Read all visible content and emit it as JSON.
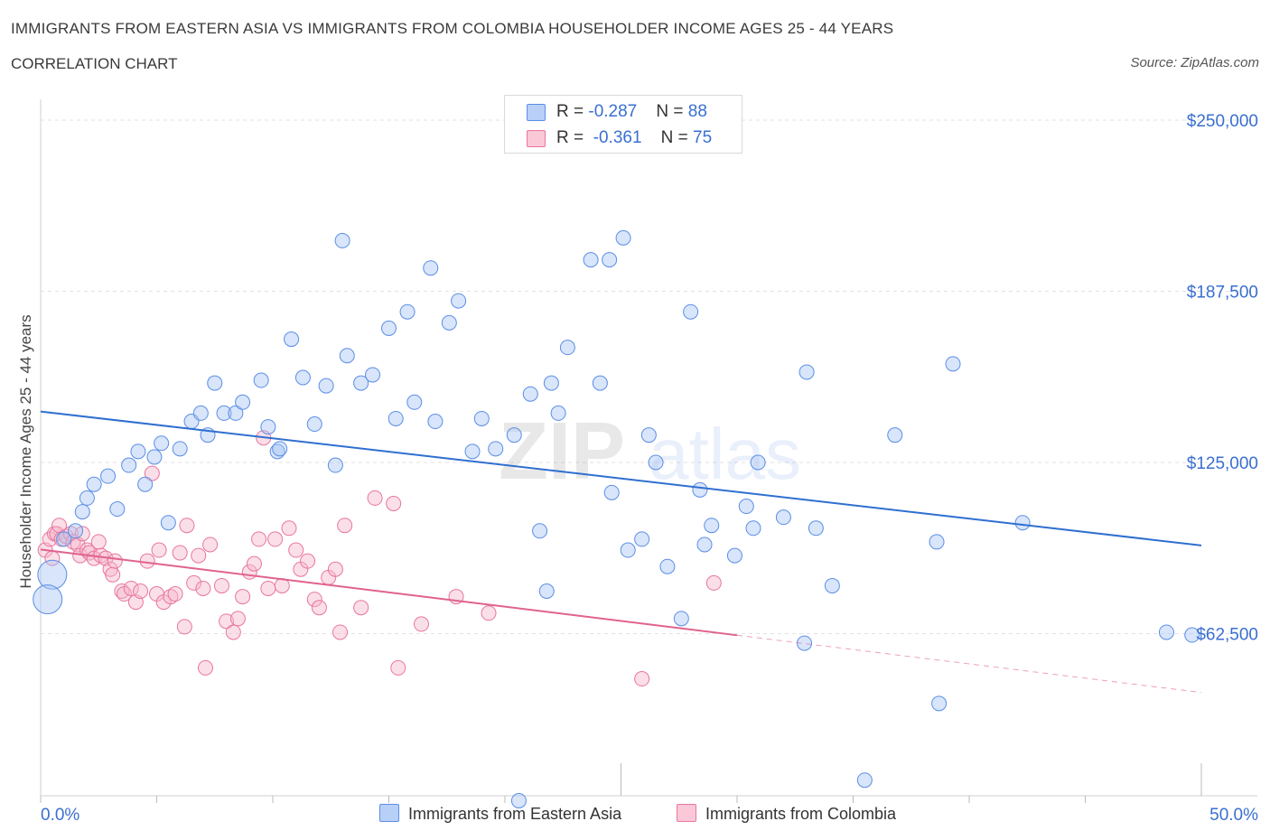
{
  "header": {
    "title": "IMMIGRANTS FROM EASTERN ASIA VS IMMIGRANTS FROM COLOMBIA HOUSEHOLDER INCOME AGES 25 - 44 YEARS",
    "subtitle": "CORRELATION CHART",
    "source": "Source: ZipAtlas.com"
  },
  "legend": {
    "rows": [
      {
        "r_label": "R = ",
        "r_value": "-0.287",
        "n_label": "N = ",
        "n_value": "88"
      },
      {
        "r_label": "R = ",
        "r_value": "-0.361",
        "n_label": "N = ",
        "n_value": "75"
      }
    ]
  },
  "watermark": {
    "zip": "ZIP",
    "atlas": "atlas"
  },
  "chart_data": {
    "type": "scatter",
    "title": "IMMIGRANTS FROM EASTERN ASIA VS IMMIGRANTS FROM COLOMBIA HOUSEHOLDER INCOME AGES 25 - 44 YEARS",
    "subtitle": "CORRELATION CHART",
    "xlabel": "",
    "ylabel": "Householder Income Ages 25 - 44 years",
    "xlim": [
      0,
      50
    ],
    "ylim": [
      0,
      250000
    ],
    "x_tick_labels": {
      "left": "0.0%",
      "right": "50.0%"
    },
    "y_ticks": [
      {
        "value": 250000,
        "label": "$250,000"
      },
      {
        "value": 187500,
        "label": "$187,500"
      },
      {
        "value": 125000,
        "label": "$125,000"
      },
      {
        "value": 62500,
        "label": "$62,500"
      }
    ],
    "colors": {
      "blue": "#5b8ee6",
      "blue_fill": "#a9c5f3",
      "pink": "#e8769e",
      "pink_fill": "#f6b9cd",
      "blue_line": "#2f6fd0",
      "pink_line": "#e0628f",
      "grid": "#e2e2e2",
      "tick_label": "#3a6fd0"
    },
    "series": [
      {
        "name": "Immigrants from Eastern Asia",
        "color": "#5b8ee6",
        "R": -0.287,
        "N": 88,
        "trend": {
          "x0": 0,
          "y0": 143600,
          "x1": 50,
          "y1": 94700
        },
        "points": [
          [
            0.5,
            84000
          ],
          [
            0.3,
            75000
          ],
          [
            1.0,
            97000
          ],
          [
            1.5,
            100000
          ],
          [
            1.8,
            107000
          ],
          [
            2.0,
            112000
          ],
          [
            2.3,
            117000
          ],
          [
            2.9,
            120000
          ],
          [
            3.3,
            108000
          ],
          [
            3.8,
            124000
          ],
          [
            4.2,
            129000
          ],
          [
            4.5,
            117000
          ],
          [
            4.9,
            127000
          ],
          [
            5.2,
            132000
          ],
          [
            5.5,
            103000
          ],
          [
            6.0,
            130000
          ],
          [
            6.5,
            140000
          ],
          [
            6.9,
            143000
          ],
          [
            7.2,
            135000
          ],
          [
            7.5,
            154000
          ],
          [
            7.9,
            143000
          ],
          [
            8.4,
            143000
          ],
          [
            8.7,
            147000
          ],
          [
            9.5,
            155000
          ],
          [
            9.8,
            138000
          ],
          [
            10.2,
            129000
          ],
          [
            10.3,
            130000
          ],
          [
            10.8,
            170000
          ],
          [
            11.3,
            156000
          ],
          [
            11.8,
            139000
          ],
          [
            12.3,
            153000
          ],
          [
            12.7,
            124000
          ],
          [
            13.2,
            164000
          ],
          [
            13.8,
            154000
          ],
          [
            13.0,
            206000
          ],
          [
            14.3,
            157000
          ],
          [
            15.0,
            174000
          ],
          [
            15.3,
            141000
          ],
          [
            15.8,
            180000
          ],
          [
            16.1,
            147000
          ],
          [
            16.8,
            196000
          ],
          [
            17.0,
            140000
          ],
          [
            17.6,
            176000
          ],
          [
            18.0,
            184000
          ],
          [
            18.6,
            129000
          ],
          [
            19.0,
            141000
          ],
          [
            19.6,
            130000
          ],
          [
            20.4,
            135000
          ],
          [
            20.6,
            1500
          ],
          [
            21.1,
            150000
          ],
          [
            21.5,
            100000
          ],
          [
            21.8,
            78000
          ],
          [
            22.0,
            154000
          ],
          [
            22.3,
            143000
          ],
          [
            22.7,
            167000
          ],
          [
            23.7,
            199000
          ],
          [
            24.1,
            154000
          ],
          [
            24.5,
            199000
          ],
          [
            24.6,
            114000
          ],
          [
            25.1,
            207000
          ],
          [
            25.3,
            93000
          ],
          [
            25.9,
            97000
          ],
          [
            26.2,
            135000
          ],
          [
            26.5,
            125000
          ],
          [
            27.0,
            87000
          ],
          [
            27.6,
            68000
          ],
          [
            28.0,
            180000
          ],
          [
            28.4,
            115000
          ],
          [
            28.6,
            95000
          ],
          [
            28.9,
            102000
          ],
          [
            29.9,
            91000
          ],
          [
            30.4,
            109000
          ],
          [
            30.7,
            101000
          ],
          [
            30.9,
            125000
          ],
          [
            32.0,
            105000
          ],
          [
            32.9,
            59000
          ],
          [
            33.0,
            158000
          ],
          [
            33.4,
            101000
          ],
          [
            34.1,
            80000
          ],
          [
            35.5,
            9000
          ],
          [
            36.8,
            135000
          ],
          [
            38.6,
            96000
          ],
          [
            38.7,
            37000
          ],
          [
            39.3,
            161000
          ],
          [
            42.3,
            103000
          ],
          [
            48.5,
            63000
          ],
          [
            49.6,
            62000
          ]
        ],
        "large_points": [
          [
            0.5,
            84000
          ],
          [
            0.3,
            75000
          ]
        ]
      },
      {
        "name": "Immigrants from Colombia",
        "color": "#e8769e",
        "R": -0.361,
        "N": 75,
        "trend": {
          "x0": 0,
          "y0": 93200,
          "x1": 30,
          "y1": 61900,
          "dash_x1": 50,
          "dash_y1": 41000
        },
        "points": [
          [
            0.2,
            93000
          ],
          [
            0.4,
            97000
          ],
          [
            0.5,
            90000
          ],
          [
            0.6,
            99000
          ],
          [
            0.7,
            99000
          ],
          [
            0.8,
            102000
          ],
          [
            0.9,
            97000
          ],
          [
            1.1,
            98000
          ],
          [
            1.3,
            99000
          ],
          [
            1.4,
            96000
          ],
          [
            1.6,
            95000
          ],
          [
            1.7,
            91000
          ],
          [
            1.8,
            99000
          ],
          [
            2.0,
            93000
          ],
          [
            2.1,
            92000
          ],
          [
            2.3,
            90000
          ],
          [
            2.5,
            96000
          ],
          [
            2.6,
            91000
          ],
          [
            2.8,
            90000
          ],
          [
            3.0,
            86000
          ],
          [
            3.1,
            84000
          ],
          [
            3.2,
            89000
          ],
          [
            3.5,
            78000
          ],
          [
            3.6,
            77000
          ],
          [
            3.9,
            79000
          ],
          [
            4.1,
            74000
          ],
          [
            4.3,
            78000
          ],
          [
            4.6,
            89000
          ],
          [
            4.8,
            121000
          ],
          [
            5.0,
            77000
          ],
          [
            5.1,
            93000
          ],
          [
            5.3,
            74000
          ],
          [
            5.6,
            76000
          ],
          [
            5.8,
            77000
          ],
          [
            6.0,
            92000
          ],
          [
            6.2,
            65000
          ],
          [
            6.3,
            102000
          ],
          [
            6.6,
            81000
          ],
          [
            6.8,
            91000
          ],
          [
            7.0,
            79000
          ],
          [
            7.1,
            50000
          ],
          [
            7.3,
            95000
          ],
          [
            7.8,
            80000
          ],
          [
            8.0,
            67000
          ],
          [
            8.3,
            63000
          ],
          [
            8.5,
            68000
          ],
          [
            8.7,
            76000
          ],
          [
            9.0,
            85000
          ],
          [
            9.2,
            88000
          ],
          [
            9.4,
            97000
          ],
          [
            9.6,
            134000
          ],
          [
            9.8,
            79000
          ],
          [
            10.1,
            97000
          ],
          [
            10.4,
            80000
          ],
          [
            10.7,
            101000
          ],
          [
            11.0,
            93000
          ],
          [
            11.2,
            86000
          ],
          [
            11.5,
            89000
          ],
          [
            11.8,
            75000
          ],
          [
            12.0,
            72000
          ],
          [
            12.4,
            83000
          ],
          [
            12.7,
            86000
          ],
          [
            12.9,
            63000
          ],
          [
            13.1,
            102000
          ],
          [
            13.8,
            72000
          ],
          [
            14.4,
            112000
          ],
          [
            15.2,
            110000
          ],
          [
            15.4,
            50000
          ],
          [
            16.4,
            66000
          ],
          [
            17.9,
            76000
          ],
          [
            19.3,
            70000
          ],
          [
            25.9,
            46000
          ],
          [
            29.0,
            81000
          ]
        ]
      }
    ]
  },
  "bottom_legend": {
    "items": [
      {
        "label": "Immigrants from Eastern Asia"
      },
      {
        "label": "Immigrants from Colombia"
      }
    ]
  }
}
